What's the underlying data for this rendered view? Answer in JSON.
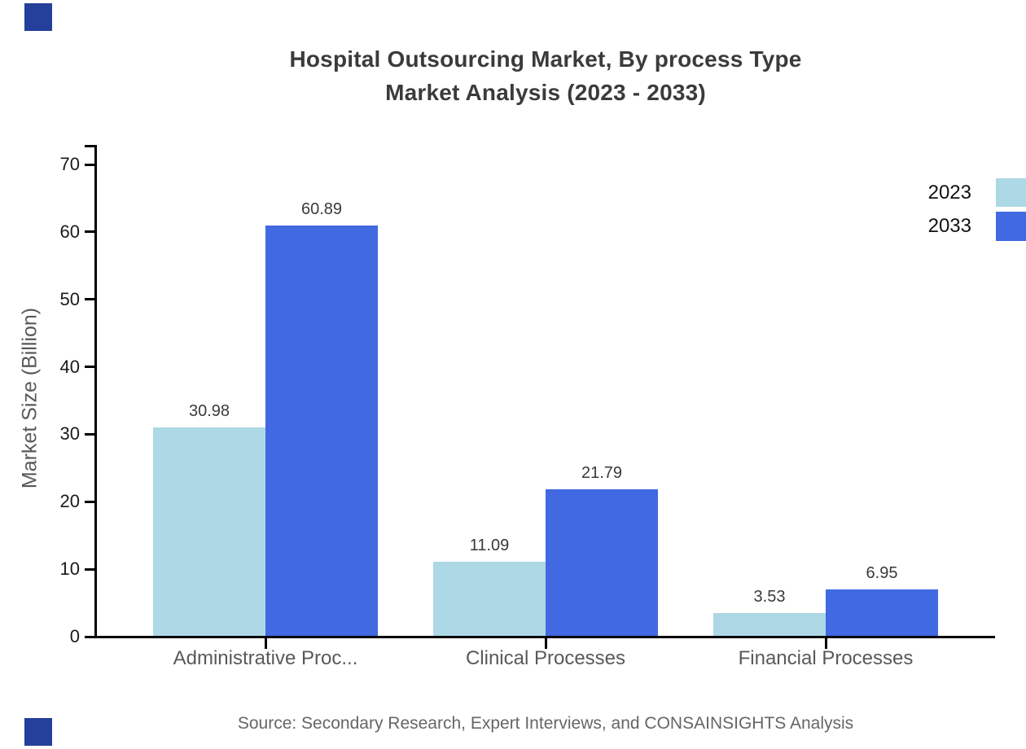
{
  "title": {
    "line1": "Hospital Outsourcing Market, By process Type",
    "line2": "Market Analysis (2023 - 2033)",
    "color": "#3b3b3b"
  },
  "chart_data": {
    "type": "bar",
    "title": "Hospital Outsourcing Market, By process Type Market Analysis (2023 - 2033)",
    "categories": [
      "Administrative Proc...",
      "Clinical Processes",
      "Financial Processes"
    ],
    "series": [
      {
        "name": "2023",
        "color": "#add8e6",
        "values": [
          30.98,
          11.09,
          3.53
        ]
      },
      {
        "name": "2033",
        "color": "#4169e1",
        "values": [
          60.89,
          21.79,
          6.95
        ]
      }
    ],
    "xlabel": "",
    "ylabel": "Market Size (Billion)",
    "ylim": [
      0,
      70
    ],
    "yticks": [
      0,
      10,
      20,
      30,
      40,
      50,
      60,
      70
    ],
    "grid": false,
    "legend_position": "right-top",
    "value_labels": true
  },
  "axis": {
    "line_color": "#000000",
    "tick_label_color": "#1a1a1a",
    "category_label_color": "#595959",
    "value_label_color": "#3a3a3a",
    "ylabel_color": "#595959"
  },
  "legend": {
    "text_color": "#111111"
  },
  "decorations": {
    "corner_square_color": "#24409a"
  },
  "source": {
    "text": "Source: Secondary Research, Expert Interviews, and CONSAINSIGHTS Analysis",
    "color": "#666666"
  }
}
